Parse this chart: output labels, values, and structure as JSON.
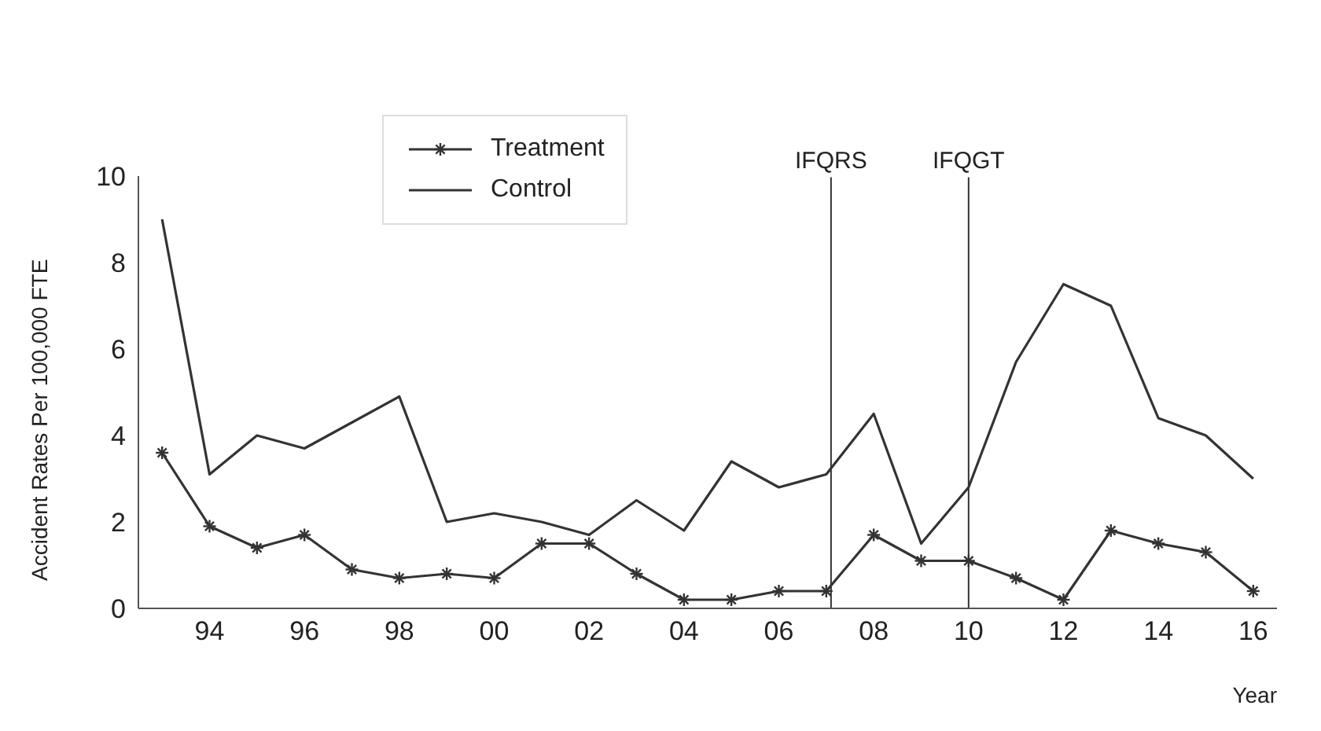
{
  "chart_data": {
    "type": "line",
    "xlabel": "Year",
    "ylabel": "Accident Rates Per 100,000 FTE",
    "x": [
      1993,
      1994,
      1995,
      1996,
      1997,
      1998,
      1999,
      2000,
      2001,
      2002,
      2003,
      2004,
      2005,
      2006,
      2007,
      2008,
      2009,
      2010,
      2011,
      2012,
      2013,
      2014,
      2015,
      2016
    ],
    "series": [
      {
        "name": "Treatment",
        "color": "#333333",
        "marker": "cross",
        "values": [
          3.6,
          1.9,
          1.4,
          1.7,
          0.9,
          0.7,
          0.8,
          0.7,
          1.5,
          1.5,
          0.8,
          0.2,
          0.2,
          0.4,
          0.4,
          1.7,
          1.1,
          1.1,
          0.7,
          0.2,
          1.8,
          1.5,
          1.3,
          0.4
        ]
      },
      {
        "name": "Control",
        "color": "#333333",
        "marker": "none",
        "values": [
          9.0,
          3.1,
          4.0,
          3.7,
          4.3,
          4.9,
          2.0,
          2.2,
          2.0,
          1.7,
          2.5,
          1.8,
          3.4,
          2.8,
          3.1,
          4.5,
          1.5,
          2.8,
          5.7,
          7.5,
          7.0,
          4.4,
          4.0,
          3.0
        ]
      }
    ],
    "xlim": [
      1992.5,
      2016.5
    ],
    "xticks": [
      {
        "value": 1994,
        "label": "94"
      },
      {
        "value": 1996,
        "label": "96"
      },
      {
        "value": 1998,
        "label": "98"
      },
      {
        "value": 2000,
        "label": "00"
      },
      {
        "value": 2002,
        "label": "02"
      },
      {
        "value": 2004,
        "label": "04"
      },
      {
        "value": 2006,
        "label": "06"
      },
      {
        "value": 2008,
        "label": "08"
      },
      {
        "value": 2010,
        "label": "10"
      },
      {
        "value": 2012,
        "label": "12"
      },
      {
        "value": 2014,
        "label": "14"
      },
      {
        "value": 2016,
        "label": "16"
      }
    ],
    "ylim": [
      0,
      10
    ],
    "yticks": [
      0,
      2,
      4,
      6,
      8,
      10
    ],
    "ref_lines": [
      {
        "axis": "x",
        "value": 2007.1,
        "label": "IFQRS",
        "color": "#333333"
      },
      {
        "axis": "x",
        "value": 2010,
        "label": "IFQGT",
        "color": "#333333"
      }
    ],
    "grid": false,
    "legend": "top left",
    "line_style": "solid"
  }
}
